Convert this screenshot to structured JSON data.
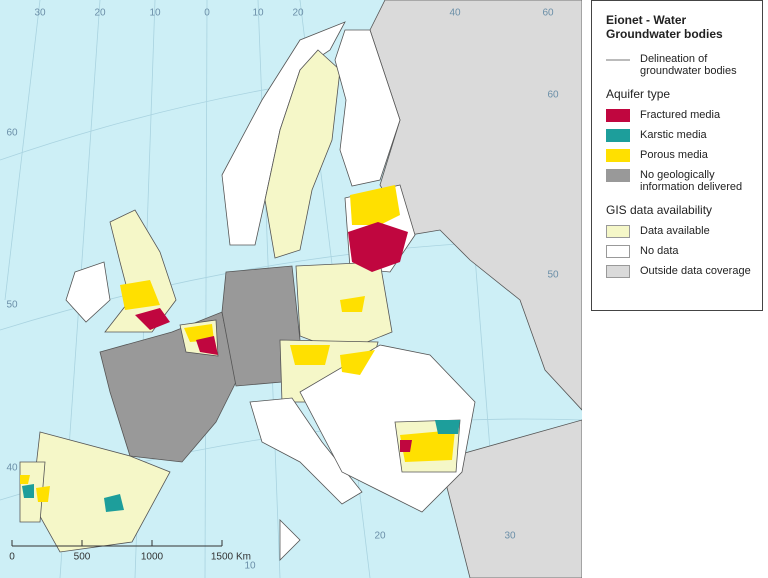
{
  "legend": {
    "title": "Eionet - Water Groundwater bodies",
    "delineation": "Delineation of groundwater bodies",
    "aquifer_heading": "Aquifer type",
    "aquifer_items": [
      "Fractured media",
      "Karstic media",
      "Porous media",
      "No geologically information delivered"
    ],
    "gis_heading": "GIS data availability",
    "gis_items": [
      "Data available",
      "No data",
      "Outside data coverage"
    ]
  },
  "scale_bar": {
    "labels": [
      "0",
      "500",
      "1000",
      "1500"
    ],
    "unit": "Km"
  },
  "graticule_labels": {
    "top": [
      "30",
      "20",
      "10",
      "0",
      "10",
      "20",
      "40",
      "60"
    ],
    "left": [
      "60",
      "50",
      "40"
    ],
    "right": [
      "60",
      "50"
    ],
    "bottom": [
      "10",
      "20",
      "30"
    ]
  }
}
